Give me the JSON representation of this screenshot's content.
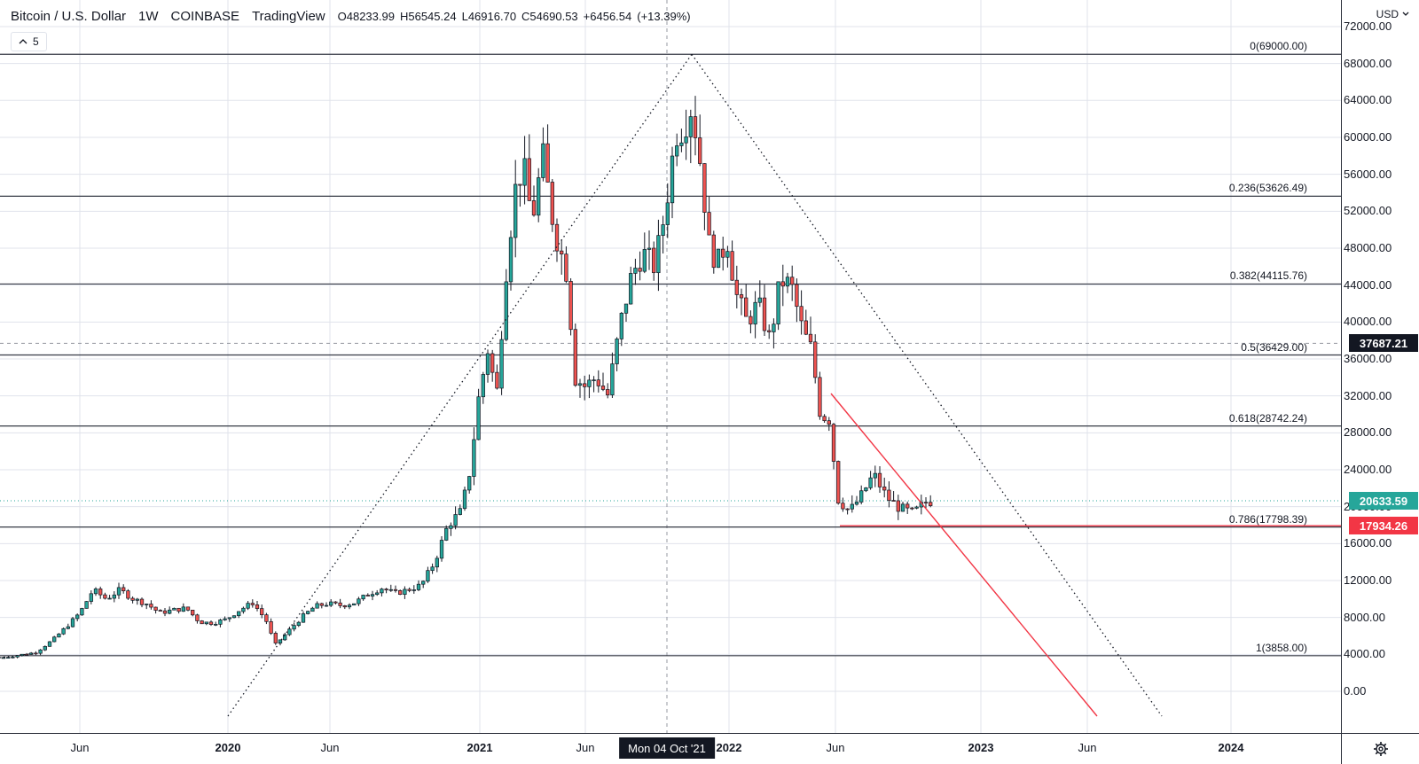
{
  "legend": {
    "symbol": "Bitcoin / U.S. Dollar",
    "interval": "1W",
    "exchange": "COINBASE",
    "source": "TradingView",
    "open": "O48233.99",
    "high": "H56545.24",
    "low": "L46916.70",
    "close": "C54690.53",
    "change": "+6456.54",
    "change_pct": "(+13.39%)"
  },
  "indicator_count": "5",
  "currency_selector": "USD",
  "price_axis": [
    "72000.00",
    "68000.00",
    "64000.00",
    "60000.00",
    "56000.00",
    "52000.00",
    "48000.00",
    "44000.00",
    "40000.00",
    "36000.00",
    "32000.00",
    "28000.00",
    "24000.00",
    "20000.00",
    "16000.00",
    "12000.00",
    "8000.00",
    "4000.00",
    "0.00"
  ],
  "time_axis": [
    {
      "label": "Jun",
      "bold": false
    },
    {
      "label": "2020",
      "bold": true
    },
    {
      "label": "Jun",
      "bold": false
    },
    {
      "label": "2021",
      "bold": true
    },
    {
      "label": "Jun",
      "bold": false
    },
    {
      "label": "2022",
      "bold": true
    },
    {
      "label": "Jun",
      "bold": false
    },
    {
      "label": "2023",
      "bold": true
    },
    {
      "label": "Jun",
      "bold": false
    },
    {
      "label": "2024",
      "bold": true
    }
  ],
  "cursor_date": "Mon 04 Oct '21",
  "price_tags": {
    "crosshair": "37687.21",
    "last_price": "20633.59",
    "support": "17934.26"
  },
  "fib_levels": [
    {
      "label": "0(69000.00)",
      "price": 69000
    },
    {
      "label": "0.236(53626.49)",
      "price": 53626.49
    },
    {
      "label": "0.382(44115.76)",
      "price": 44115.76
    },
    {
      "label": "0.5(36429.00)",
      "price": 36429
    },
    {
      "label": "0.618(28742.24)",
      "price": 28742.24
    },
    {
      "label": "0.786(17798.39)",
      "price": 17798.39
    },
    {
      "label": "1(3858.00)",
      "price": 3858
    }
  ],
  "colors": {
    "up": "#26a69a",
    "down": "#ef5350",
    "text": "#131722",
    "crosshair_tag": "#131722",
    "last_tag": "#26a69a",
    "support_tag": "#f23645",
    "trendline": "#f23645",
    "fib_line": "#363a45"
  },
  "icons": [
    "chevron-down-icon",
    "gear-icon",
    "chevron-up-icon"
  ],
  "chart_data": {
    "type": "candlestick",
    "interval": "1W",
    "ylim": [
      0,
      72000
    ],
    "reference_prices": {
      "crosshair": 37687.21,
      "last": 20633.59,
      "support": 17934.26
    },
    "close_path": [
      [
        0,
        3600
      ],
      [
        20,
        3900
      ],
      [
        40,
        4200
      ],
      [
        60,
        5600
      ],
      [
        75,
        7000
      ],
      [
        90,
        8500
      ],
      [
        105,
        11000
      ],
      [
        120,
        10000
      ],
      [
        135,
        11000
      ],
      [
        150,
        10000
      ],
      [
        165,
        9500
      ],
      [
        180,
        8500
      ],
      [
        195,
        8800
      ],
      [
        210,
        9000
      ],
      [
        225,
        7500
      ],
      [
        240,
        7400
      ],
      [
        255,
        7800
      ],
      [
        270,
        8800
      ],
      [
        285,
        9600
      ],
      [
        300,
        7700
      ],
      [
        310,
        5000
      ],
      [
        325,
        6500
      ],
      [
        340,
        8000
      ],
      [
        355,
        9200
      ],
      [
        370,
        9500
      ],
      [
        385,
        9300
      ],
      [
        400,
        9600
      ],
      [
        415,
        10500
      ],
      [
        430,
        11200
      ],
      [
        445,
        10600
      ],
      [
        460,
        11000
      ],
      [
        475,
        11500
      ],
      [
        490,
        14000
      ],
      [
        505,
        18000
      ],
      [
        520,
        19500
      ],
      [
        530,
        24000
      ],
      [
        540,
        32000
      ],
      [
        550,
        37000
      ],
      [
        560,
        32000
      ],
      [
        570,
        45000
      ],
      [
        580,
        54000
      ],
      [
        590,
        57000
      ],
      [
        600,
        51000
      ],
      [
        612,
        58000
      ],
      [
        625,
        50000
      ],
      [
        640,
        45000
      ],
      [
        648,
        34000
      ],
      [
        660,
        33000
      ],
      [
        672,
        34000
      ],
      [
        685,
        32000
      ],
      [
        700,
        40000
      ],
      [
        712,
        45000
      ],
      [
        725,
        47500
      ],
      [
        738,
        46000
      ],
      [
        750,
        52000
      ],
      [
        762,
        60500
      ],
      [
        770,
        61000
      ],
      [
        780,
        63500
      ],
      [
        790,
        57000
      ],
      [
        800,
        48000
      ],
      [
        810,
        46500
      ],
      [
        820,
        49000
      ],
      [
        830,
        43000
      ],
      [
        842,
        40000
      ],
      [
        855,
        42000
      ],
      [
        868,
        38000
      ],
      [
        880,
        44500
      ],
      [
        892,
        44000
      ],
      [
        905,
        39000
      ],
      [
        915,
        37000
      ],
      [
        925,
        30000
      ],
      [
        935,
        29500
      ],
      [
        945,
        20800
      ],
      [
        958,
        19500
      ],
      [
        970,
        21000
      ],
      [
        985,
        23500
      ],
      [
        1000,
        21000
      ],
      [
        1015,
        19800
      ],
      [
        1030,
        19300
      ],
      [
        1045,
        20600
      ]
    ]
  }
}
